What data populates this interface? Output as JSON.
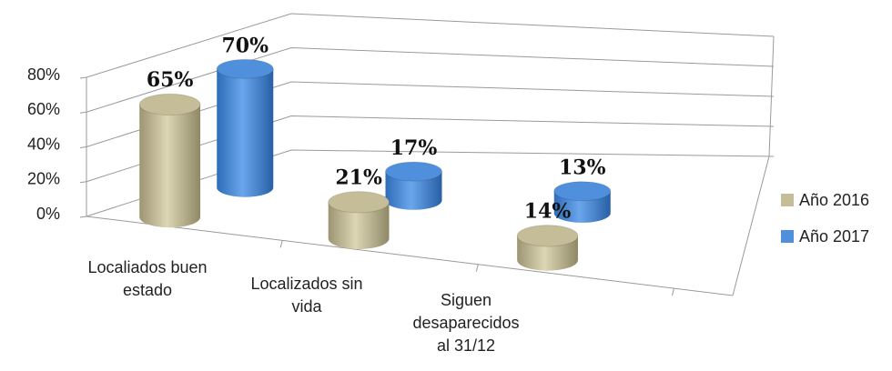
{
  "chart_data": {
    "type": "bar3d",
    "categories": [
      "Localiados buen estado",
      "Localizados sin vida",
      "Siguen desaparecidos al 31/12"
    ],
    "series": [
      {
        "name": "Año 2016",
        "color": "#c4bd97",
        "values": [
          65,
          21,
          14
        ],
        "value_labels": [
          "65%",
          "21%",
          "14%"
        ]
      },
      {
        "name": "Año 2017",
        "color": "#4f8fdc",
        "values": [
          70,
          17,
          13
        ],
        "value_labels": [
          "70%",
          "17%",
          "13%"
        ]
      }
    ],
    "ylim": [
      0,
      80
    ],
    "yticks": [
      {
        "value": 0,
        "label": "0%"
      },
      {
        "value": 20,
        "label": "20%"
      },
      {
        "value": 40,
        "label": "40%"
      },
      {
        "value": 60,
        "label": "60%"
      },
      {
        "value": 80,
        "label": "80%"
      }
    ],
    "grid": true,
    "legend": "right"
  }
}
